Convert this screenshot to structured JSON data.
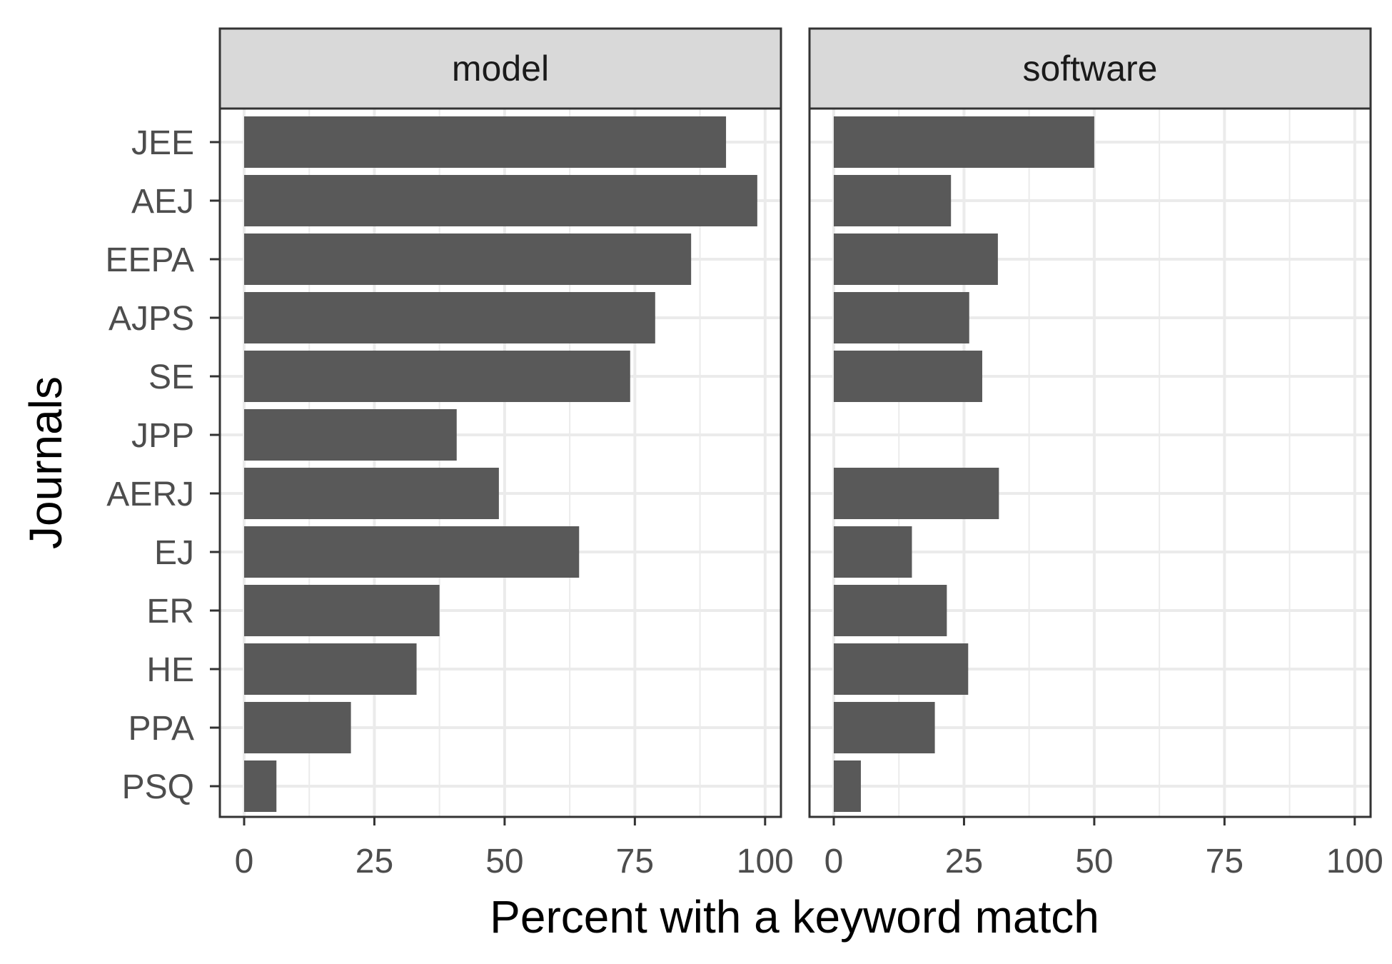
{
  "chart_data": {
    "type": "bar",
    "orientation": "horizontal",
    "xlabel": "Percent with a keyword match",
    "ylabel": "Journals",
    "xlim": [
      0,
      100
    ],
    "x_ticks": [
      "0",
      "25",
      "50",
      "75",
      "100"
    ],
    "categories": [
      "JEE",
      "AEJ",
      "EEPA",
      "AJPS",
      "SE",
      "JPP",
      "AERJ",
      "EJ",
      "ER",
      "HE",
      "PPA",
      "PSQ"
    ],
    "grid": true,
    "facets": [
      {
        "label": "model",
        "values": [
          92.5,
          98.5,
          85.8,
          78.9,
          74.1,
          40.8,
          48.9,
          64.3,
          37.5,
          33.1,
          20.5,
          6.2
        ]
      },
      {
        "label": "software",
        "values": [
          50.0,
          22.5,
          31.5,
          26.0,
          28.5,
          0,
          31.7,
          15.0,
          21.7,
          25.8,
          19.4,
          5.2
        ]
      }
    ],
    "colors": {
      "bar": "#595959",
      "panel_bg": "#ffffff",
      "grid": "#ebebeb",
      "strip_bg": "#d9d9d9",
      "border": "#333333"
    }
  }
}
